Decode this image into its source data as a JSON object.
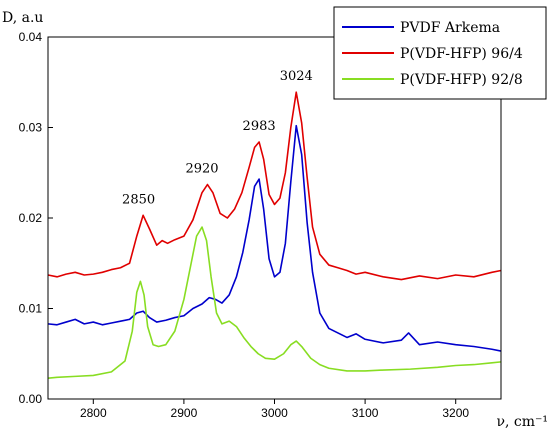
{
  "chart_data": {
    "type": "line",
    "xlabel": "ν, cm⁻¹",
    "ylabel": "D, a.u",
    "xlim": [
      2750,
      3250
    ],
    "ylim": [
      0,
      0.04
    ],
    "xticks": [
      2800,
      2900,
      3000,
      3100,
      3200
    ],
    "yticks": [
      0,
      0.01,
      0.02,
      0.03,
      0.04
    ],
    "xtick_labels": [
      "2800",
      "2900",
      "3000",
      "3100",
      "3200"
    ],
    "ytick_labels": [
      "0.00",
      "0.01",
      "0.02",
      "0.03",
      "0.04"
    ],
    "grid": false,
    "legend_position": "top-right",
    "series": [
      {
        "name": "PVDF Arkema",
        "color": "#0000cc",
        "x": [
          2750,
          2760,
          2770,
          2780,
          2790,
          2800,
          2810,
          2820,
          2830,
          2840,
          2848,
          2855,
          2862,
          2870,
          2880,
          2890,
          2900,
          2910,
          2920,
          2928,
          2935,
          2942,
          2950,
          2958,
          2965,
          2972,
          2978,
          2983,
          2988,
          2994,
          3000,
          3006,
          3012,
          3018,
          3024,
          3030,
          3036,
          3042,
          3050,
          3060,
          3070,
          3080,
          3090,
          3100,
          3120,
          3140,
          3148,
          3160,
          3180,
          3200,
          3220,
          3240,
          3250
        ],
        "y": [
          0.0083,
          0.0082,
          0.0085,
          0.0088,
          0.0083,
          0.0085,
          0.0082,
          0.0084,
          0.0086,
          0.0088,
          0.0095,
          0.0097,
          0.009,
          0.0085,
          0.0087,
          0.009,
          0.0092,
          0.01,
          0.0105,
          0.0112,
          0.011,
          0.0106,
          0.0115,
          0.0135,
          0.0162,
          0.0198,
          0.0235,
          0.0243,
          0.021,
          0.0155,
          0.0135,
          0.014,
          0.0172,
          0.024,
          0.0302,
          0.027,
          0.0195,
          0.014,
          0.0095,
          0.0078,
          0.0073,
          0.0068,
          0.0072,
          0.0066,
          0.0062,
          0.0065,
          0.0073,
          0.006,
          0.0063,
          0.006,
          0.0058,
          0.0055,
          0.0053
        ]
      },
      {
        "name": "P(VDF-HFP) 96/4",
        "color": "#e00000",
        "x": [
          2750,
          2760,
          2770,
          2780,
          2790,
          2800,
          2810,
          2820,
          2830,
          2840,
          2848,
          2855,
          2862,
          2870,
          2876,
          2882,
          2890,
          2900,
          2910,
          2920,
          2926,
          2932,
          2940,
          2948,
          2956,
          2964,
          2972,
          2978,
          2983,
          2988,
          2994,
          3000,
          3006,
          3012,
          3018,
          3024,
          3030,
          3036,
          3042,
          3050,
          3060,
          3070,
          3080,
          3090,
          3100,
          3120,
          3140,
          3160,
          3180,
          3200,
          3220,
          3240,
          3250
        ],
        "y": [
          0.0137,
          0.0135,
          0.0138,
          0.014,
          0.0137,
          0.0138,
          0.014,
          0.0143,
          0.0145,
          0.015,
          0.018,
          0.0203,
          0.0188,
          0.017,
          0.0175,
          0.0172,
          0.0176,
          0.018,
          0.0198,
          0.0228,
          0.0237,
          0.0228,
          0.0205,
          0.02,
          0.021,
          0.0228,
          0.0256,
          0.0278,
          0.0284,
          0.0265,
          0.0226,
          0.0215,
          0.0222,
          0.025,
          0.03,
          0.0339,
          0.0305,
          0.0245,
          0.019,
          0.016,
          0.0148,
          0.0145,
          0.0142,
          0.0138,
          0.014,
          0.0135,
          0.0132,
          0.0136,
          0.0133,
          0.0137,
          0.0135,
          0.014,
          0.0142
        ]
      },
      {
        "name": "P(VDF-HFP) 92/8",
        "color": "#88dd22",
        "x": [
          2750,
          2760,
          2780,
          2800,
          2820,
          2835,
          2843,
          2848,
          2852,
          2856,
          2860,
          2866,
          2872,
          2880,
          2890,
          2900,
          2908,
          2914,
          2920,
          2925,
          2930,
          2936,
          2942,
          2950,
          2958,
          2966,
          2974,
          2982,
          2990,
          3000,
          3010,
          3018,
          3024,
          3030,
          3040,
          3050,
          3060,
          3080,
          3100,
          3120,
          3150,
          3180,
          3200,
          3220,
          3240,
          3250
        ],
        "y": [
          0.0023,
          0.0024,
          0.0025,
          0.0026,
          0.003,
          0.0042,
          0.0075,
          0.0118,
          0.013,
          0.0115,
          0.008,
          0.006,
          0.0058,
          0.006,
          0.0075,
          0.011,
          0.015,
          0.018,
          0.019,
          0.0175,
          0.0135,
          0.0095,
          0.0083,
          0.0086,
          0.008,
          0.0068,
          0.0058,
          0.005,
          0.0045,
          0.0044,
          0.005,
          0.006,
          0.0064,
          0.0058,
          0.0045,
          0.0038,
          0.0034,
          0.0031,
          0.0031,
          0.0032,
          0.0033,
          0.0035,
          0.0037,
          0.0038,
          0.004,
          0.0041
        ]
      }
    ],
    "annotations": [
      {
        "text": "2850",
        "x": 2850,
        "y": 0.0203
      },
      {
        "text": "2920",
        "x": 2920,
        "y": 0.0237
      },
      {
        "text": "2983",
        "x": 2983,
        "y": 0.0284
      },
      {
        "text": "3024",
        "x": 3024,
        "y": 0.0339
      }
    ]
  }
}
